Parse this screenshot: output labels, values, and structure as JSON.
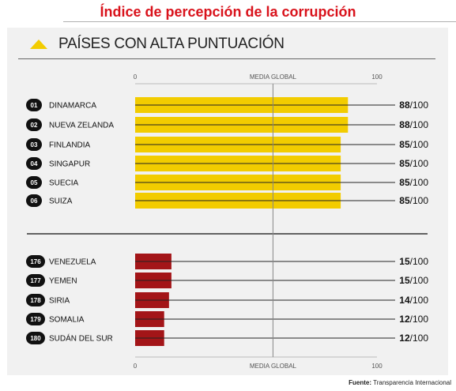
{
  "title": "Índice de percepción de la corrupción",
  "heading": "PAÍSES CON ALTA PUNTUACIÓN",
  "source_label": "Fuente:",
  "source_value": "Transparencia Internacional",
  "colors": {
    "title": "#d9121b",
    "high": "#f2cc00",
    "low": "#a31518",
    "badge": "#111111"
  },
  "chart_data": {
    "type": "bar",
    "orientation": "horizontal",
    "xlim": [
      0,
      100
    ],
    "axis_ticks": {
      "min": "0",
      "mid": "MEDIA GLOBAL",
      "max": "100"
    },
    "reference_line": {
      "label": "MEDIA GLOBAL",
      "value": 57
    },
    "groups": [
      {
        "color": "#f2cc00",
        "items": [
          {
            "rank": "01",
            "country": "DINAMARCA",
            "value": 88,
            "label": "88/100"
          },
          {
            "rank": "02",
            "country": "NUEVA ZELANDA",
            "value": 88,
            "label": "88/100"
          },
          {
            "rank": "03",
            "country": "FINLANDIA",
            "value": 85,
            "label": "85/100"
          },
          {
            "rank": "04",
            "country": "SINGAPUR",
            "value": 85,
            "label": "85/100"
          },
          {
            "rank": "05",
            "country": "SUECIA",
            "value": 85,
            "label": "85/100"
          },
          {
            "rank": "06",
            "country": "SUIZA",
            "value": 85,
            "label": "85/100"
          }
        ]
      },
      {
        "color": "#a31518",
        "items": [
          {
            "rank": "176",
            "country": "VENEZUELA",
            "value": 15,
            "label": "15/100"
          },
          {
            "rank": "177",
            "country": "YEMEN",
            "value": 15,
            "label": "15/100"
          },
          {
            "rank": "178",
            "country": "SIRIA",
            "value": 14,
            "label": "14/100"
          },
          {
            "rank": "179",
            "country": "SOMALIA",
            "value": 12,
            "label": "12/100"
          },
          {
            "rank": "180",
            "country": "SUDÁN DEL SUR",
            "value": 12,
            "label": "12/100"
          }
        ]
      }
    ]
  }
}
